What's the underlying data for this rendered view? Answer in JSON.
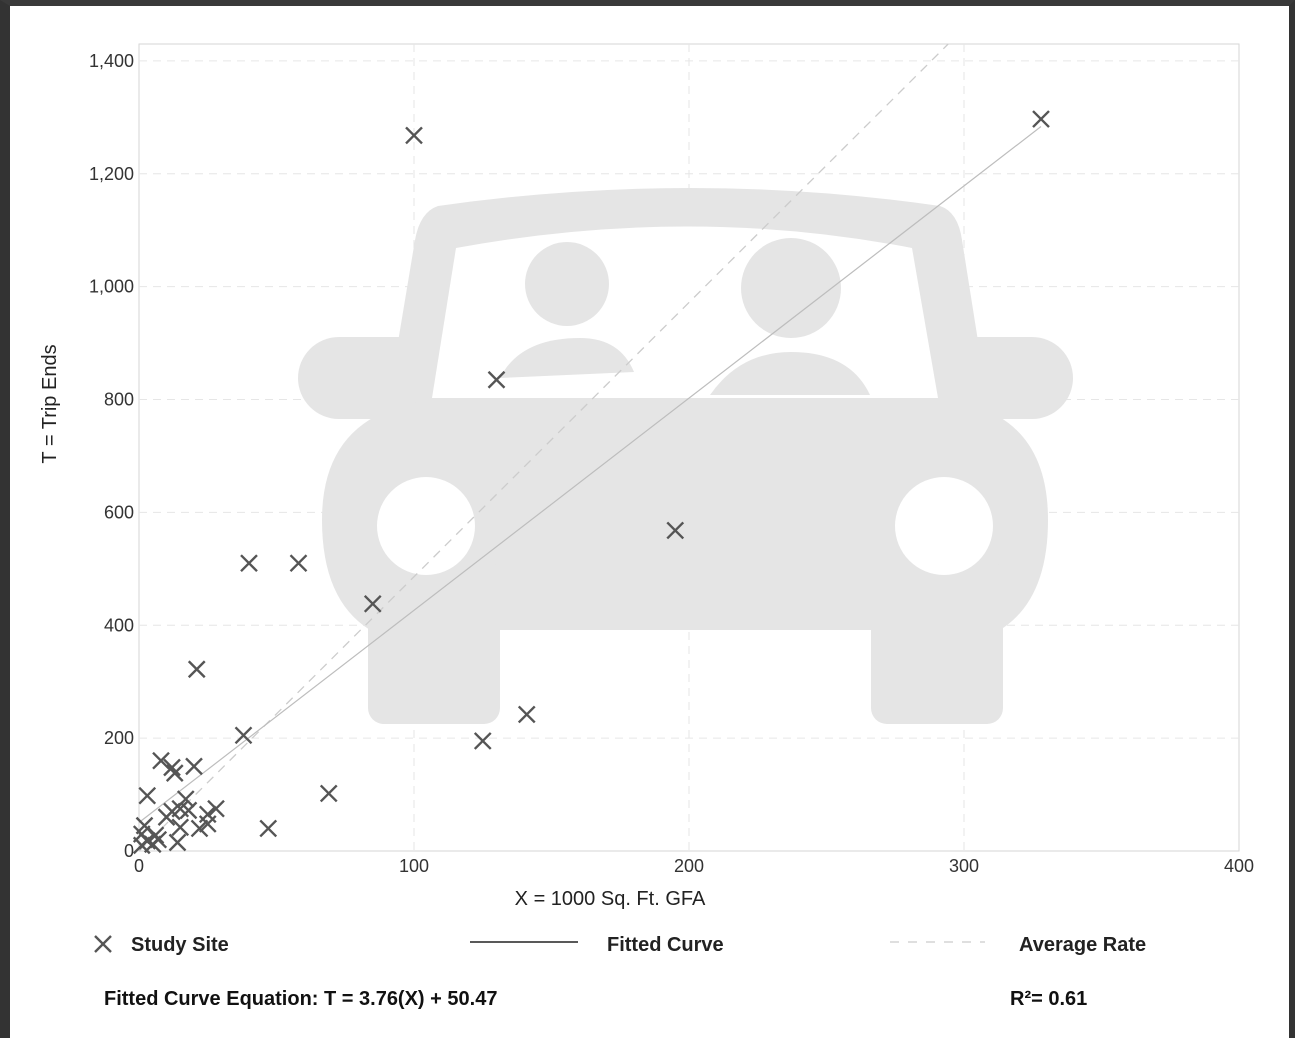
{
  "chart_data": {
    "type": "scatter",
    "xlabel": "X = 1000 Sq. Ft. GFA",
    "ylabel": "T = Trip Ends",
    "xlim": [
      0,
      400
    ],
    "ylim": [
      0,
      1430
    ],
    "x_ticks": [
      0,
      100,
      200,
      300,
      400
    ],
    "y_ticks": [
      0,
      200,
      400,
      600,
      800,
      1000,
      1200,
      1400
    ],
    "x_tick_labels": [
      "0",
      "100",
      "200",
      "300",
      "400"
    ],
    "y_tick_labels": [
      "0",
      "200",
      "400",
      "600",
      "800",
      "1,000",
      "1,200",
      "1,400"
    ],
    "grid": true,
    "series": [
      {
        "name": "Study Site",
        "marker": "x",
        "points": [
          [
            1,
            10
          ],
          [
            1,
            30
          ],
          [
            2,
            45
          ],
          [
            3,
            18
          ],
          [
            3,
            98
          ],
          [
            5,
            12
          ],
          [
            6,
            28
          ],
          [
            7,
            20
          ],
          [
            8,
            160
          ],
          [
            10,
            60
          ],
          [
            12,
            148
          ],
          [
            12,
            70
          ],
          [
            13,
            138
          ],
          [
            14,
            15
          ],
          [
            15,
            42
          ],
          [
            15,
            75
          ],
          [
            17,
            92
          ],
          [
            18,
            72
          ],
          [
            20,
            150
          ],
          [
            21,
            322
          ],
          [
            22,
            40
          ],
          [
            25,
            48
          ],
          [
            25,
            65
          ],
          [
            28,
            75
          ],
          [
            38,
            205
          ],
          [
            40,
            510
          ],
          [
            47,
            40
          ],
          [
            58,
            510
          ],
          [
            69,
            102
          ],
          [
            85,
            438
          ],
          [
            100,
            1268
          ],
          [
            125,
            195
          ],
          [
            130,
            835
          ],
          [
            141,
            242
          ],
          [
            195,
            568
          ],
          [
            328,
            1297
          ]
        ]
      }
    ],
    "fitted_curve": {
      "name": "Fitted Curve",
      "slope": 3.76,
      "intercept": 50.47,
      "x_range": [
        0,
        328
      ]
    },
    "average_rate": {
      "name": "Average Rate",
      "slope": 4.86,
      "x_range": [
        0,
        400
      ]
    },
    "legend": {
      "position": "bottom",
      "items": [
        "Study Site",
        "Fitted Curve",
        "Average Rate"
      ]
    },
    "equation_text": "Fitted Curve Equation: T = 3.76(X) + 50.47",
    "r_squared_text": "R²= 0.61"
  },
  "colors": {
    "marker": "#555555",
    "fitted_line": "#bdbdbd",
    "average_line": "#cccccc",
    "grid": "#e6e6e6",
    "watermark": "#e5e5e5",
    "axis": "#cfcfcf"
  },
  "watermark_icon": "car-with-passengers-icon"
}
